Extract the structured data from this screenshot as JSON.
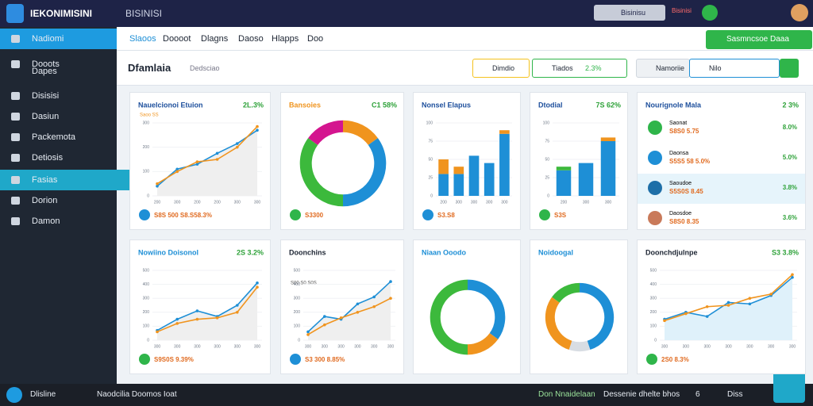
{
  "topbar": {
    "brand": "IEKONIMISINI",
    "title": "BISINISI",
    "search": "Bisinisu",
    "alert": "Bisinisi"
  },
  "sidebar": [
    "Nadiomi",
    "Dooots",
    "Dapes",
    "Disisisi",
    "Dasiun",
    "Packemota",
    "Detiosis",
    "Fasias",
    "Dorion",
    "Damon"
  ],
  "tabs": [
    "Slaoos",
    "Doooot",
    "Dlagns",
    "Daoso",
    "Hlapps",
    "Doo"
  ],
  "action_button": "Sasmncsoe Daaa",
  "header": {
    "title": "Dfamlaia",
    "subtitle": "Dedsciao",
    "filters": [
      "Dimdio",
      "Tiados",
      "2.3%",
      "Namoriie",
      "Nilo"
    ]
  },
  "cards": [
    {
      "type": "line",
      "title": "Nauelcionoi Etuion",
      "badge": "2L.3%",
      "subtitle": "Saoo SS",
      "ylim": [
        0,
        300
      ],
      "yticks": [
        0,
        100,
        200,
        300
      ],
      "categories": [
        "200",
        "300",
        "200",
        "200",
        "300",
        "300"
      ],
      "series": [
        {
          "color": "#1e8fd6",
          "values": [
            40,
            110,
            130,
            175,
            215,
            270
          ]
        },
        {
          "color": "#f0941e",
          "values": [
            50,
            100,
            140,
            150,
            200,
            285
          ]
        }
      ],
      "footer": "S8S 500 S8.S58.3%"
    },
    {
      "type": "donut",
      "title": "Bansoies",
      "badge": "C1 58%",
      "values": [
        15,
        35,
        35,
        15
      ],
      "colors": [
        "#f0941e",
        "#1e8fd6",
        "#3cb93c",
        "#d4158f"
      ],
      "footer": "S3300"
    },
    {
      "type": "bar",
      "title": "Nonsel Elapus",
      "ylim": [
        0,
        100
      ],
      "yticks": [
        0,
        25,
        50,
        75,
        100
      ],
      "categories": [
        "200",
        "300",
        "300",
        "300",
        "300"
      ],
      "series": [
        {
          "color": "#1e8fd6",
          "values": [
            30,
            30,
            55,
            45,
            85
          ]
        },
        {
          "color": "#f0941e",
          "values": [
            20,
            10,
            0,
            0,
            5
          ]
        }
      ],
      "footer": "S3.S8"
    },
    {
      "type": "bar",
      "title": "Dtodial",
      "badge": "7S 62%",
      "ylim": [
        0,
        100
      ],
      "yticks": [
        0,
        25,
        50,
        75,
        100
      ],
      "categories": [
        "200",
        "300",
        "300"
      ],
      "series": [
        {
          "color": "#1e8fd6",
          "values": [
            35,
            45,
            75
          ]
        },
        {
          "color": "#3cb93c",
          "values": [
            5,
            0,
            0
          ]
        },
        {
          "color": "#f0941e",
          "values": [
            0,
            0,
            5
          ]
        }
      ],
      "footer": "S3S"
    },
    {
      "type": "list",
      "title": "Nourignole Mala",
      "badge": "2 3%",
      "rows": [
        [
          "Saonat",
          "S8S0 5.75",
          "8.0%"
        ],
        [
          "Daonsa",
          "S5S5 58 5.0%",
          "5.0%"
        ],
        [
          "Saoudoe",
          "S5S0S 8.45",
          "3.8%"
        ],
        [
          "Daosdoe",
          "S8S0 8.35",
          "3.6%"
        ]
      ]
    },
    {
      "type": "line",
      "title": "Nowiino Doisonol",
      "badge": "2S 3.2%",
      "ylim": [
        0,
        500
      ],
      "yticks": [
        0,
        100,
        200,
        300,
        400,
        500
      ],
      "categories": [
        "300",
        "300",
        "300",
        "300",
        "300",
        "300"
      ],
      "series": [
        {
          "color": "#1e8fd6",
          "values": [
            70,
            150,
            210,
            170,
            250,
            410
          ]
        },
        {
          "color": "#f0941e",
          "values": [
            60,
            120,
            150,
            160,
            200,
            380
          ]
        }
      ],
      "footer": "S9S0S 9.39%"
    },
    {
      "type": "line",
      "title": "Doonchins",
      "subtitle": "S00 S0 S0S",
      "ylim": [
        0,
        500
      ],
      "yticks": [
        0,
        100,
        200,
        300,
        400,
        500
      ],
      "categories": [
        "300",
        "300",
        "300",
        "300",
        "300",
        "300"
      ],
      "series": [
        {
          "color": "#1e8fd6",
          "values": [
            60,
            170,
            150,
            260,
            310,
            420
          ]
        },
        {
          "color": "#f0941e",
          "values": [
            40,
            110,
            160,
            200,
            240,
            300
          ]
        }
      ],
      "footer": "S3 300 8.85%"
    },
    {
      "type": "donut",
      "title": "Niaan Ooodo",
      "values": [
        35,
        15,
        50
      ],
      "colors": [
        "#1e8fd6",
        "#f0941e",
        "#3cb93c"
      ]
    },
    {
      "type": "donut",
      "title": "Noidoogal",
      "values": [
        45,
        10,
        30,
        15
      ],
      "colors": [
        "#1e8fd6",
        "#d8dde3",
        "#f0941e",
        "#3cb93c"
      ]
    },
    {
      "type": "line",
      "title": "Doonchdjulnpe",
      "badge": "S3 3.8%",
      "ylim": [
        0,
        500
      ],
      "yticks": [
        0,
        100,
        200,
        300,
        400,
        500
      ],
      "categories": [
        "300",
        "300",
        "300",
        "300",
        "300",
        "300",
        "300"
      ],
      "series": [
        {
          "color": "#1e8fd6",
          "values": [
            150,
            200,
            170,
            270,
            260,
            320,
            450
          ]
        },
        {
          "color": "#f0941e",
          "values": [
            140,
            190,
            240,
            250,
            300,
            330,
            470
          ]
        }
      ],
      "footer": "2S0 8.3%"
    }
  ],
  "bottombar": [
    "Dlisline",
    "Naodcilia Doomos Ioat",
    "Don Nnaidelaan",
    "Dessenie dhelte bhos",
    "6",
    "Diss"
  ]
}
